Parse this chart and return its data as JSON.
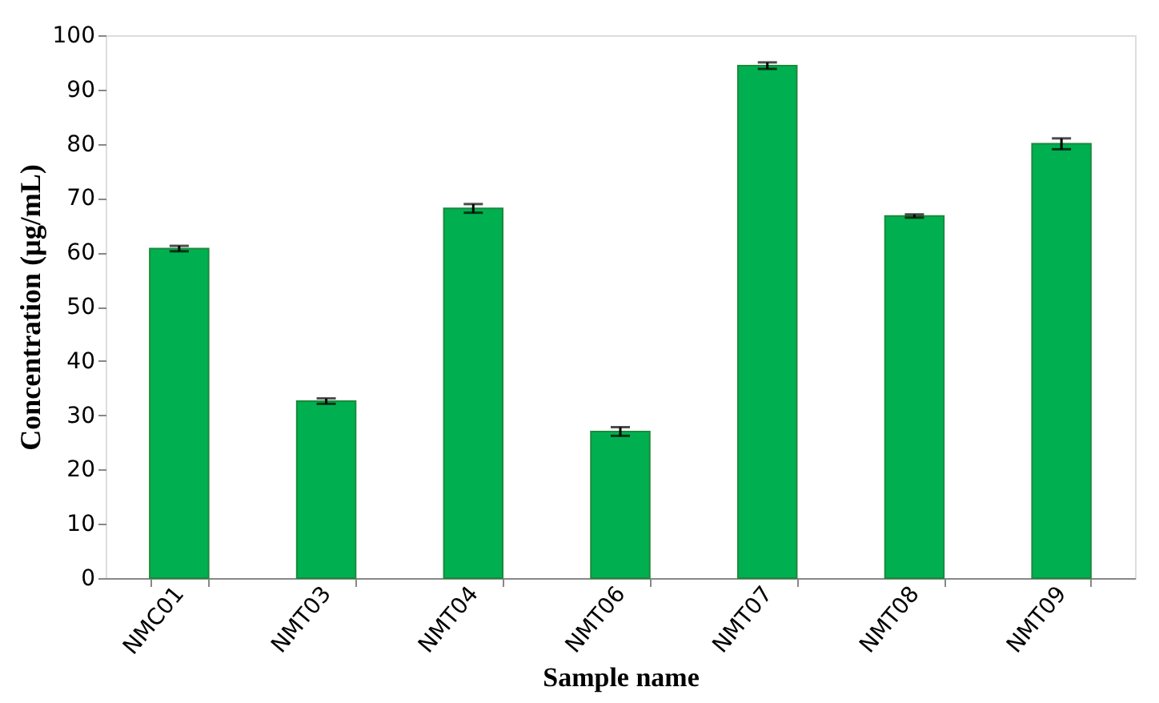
{
  "chart_data": {
    "type": "bar",
    "xlabel": "Sample name",
    "ylabel": "Concentration (µg/mL)",
    "categories": [
      "NMC01",
      "NMT03",
      "NMT04",
      "NMT06",
      "NMT07",
      "NMT08",
      "NMT09"
    ],
    "values": [
      60.7,
      32.6,
      68.1,
      27.0,
      94.4,
      66.7,
      80.0
    ],
    "errors": [
      0.5,
      0.5,
      0.8,
      0.8,
      0.6,
      0.3,
      1.0
    ],
    "color": "#00b050",
    "ylim": [
      0,
      100
    ],
    "yticks": [
      0,
      10,
      20,
      30,
      40,
      50,
      60,
      70,
      80,
      90,
      100
    ],
    "grid": false
  }
}
